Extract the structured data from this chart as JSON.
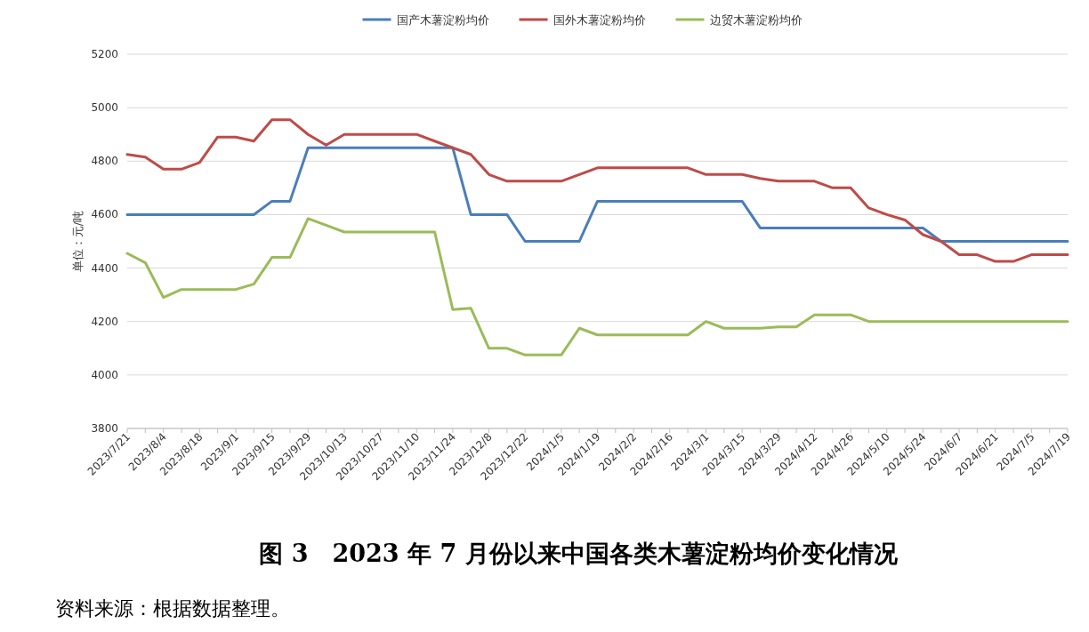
{
  "chart_data": {
    "type": "line",
    "title": "图 3　2023 年 7 月份以来中国各类木薯淀粉均价变化情况",
    "ylabel": "单位：元/吨",
    "categories": [
      "2023/7/21",
      null,
      "2023/8/4",
      null,
      "2023/8/18",
      null,
      "2023/9/1",
      null,
      "2023/9/15",
      null,
      "2023/9/29",
      null,
      "2023/10/13",
      null,
      "2023/10/27",
      null,
      "2023/11/10",
      null,
      "2023/11/24",
      null,
      "2023/12/8",
      null,
      "2023/12/22",
      null,
      "2024/1/5",
      null,
      "2024/1/19",
      null,
      "2024/2/2",
      null,
      "2024/2/16",
      null,
      "2024/3/1",
      null,
      "2024/3/15",
      null,
      "2024/3/29",
      null,
      "2024/4/12",
      null,
      "2024/4/26",
      null,
      "2024/5/10",
      null,
      "2024/5/24",
      null,
      "2024/6/7",
      null,
      "2024/6/21",
      null,
      "2024/7/5",
      null,
      "2024/7/19"
    ],
    "series": [
      {
        "name": "国产木薯淀粉均价",
        "color": "#4a7ebb",
        "values": [
          4600,
          4600,
          4600,
          4600,
          4600,
          4600,
          4600,
          4600,
          4650,
          4650,
          4850,
          4850,
          4850,
          4850,
          4850,
          4850,
          4850,
          4850,
          4850,
          4600,
          4600,
          4600,
          4500,
          4500,
          4500,
          4500,
          4650,
          4650,
          4650,
          4650,
          4650,
          4650,
          4650,
          4650,
          4650,
          4550,
          4550,
          4550,
          4550,
          4550,
          4550,
          4550,
          4550,
          4550,
          4550,
          4500,
          4500,
          4500,
          4500,
          4500,
          4500,
          4500,
          4500
        ]
      },
      {
        "name": "国外木薯淀粉均价",
        "color": "#be4b48",
        "values": [
          4825,
          4815,
          4770,
          4770,
          4795,
          4890,
          4890,
          4875,
          4955,
          4955,
          4900,
          4860,
          4900,
          4900,
          4900,
          4900,
          4900,
          4875,
          4850,
          4825,
          4750,
          4725,
          4725,
          4725,
          4725,
          4750,
          4775,
          4775,
          4775,
          4775,
          4775,
          4775,
          4750,
          4750,
          4750,
          4735,
          4725,
          4725,
          4725,
          4700,
          4700,
          4625,
          4600,
          4580,
          4525,
          4500,
          4450,
          4450,
          4425,
          4425,
          4450,
          4450,
          4450
        ]
      },
      {
        "name": "边贸木薯淀粉均价",
        "color": "#9bbb59",
        "values": [
          4455,
          4420,
          4290,
          4320,
          4320,
          4320,
          4320,
          4340,
          4440,
          4440,
          4585,
          4560,
          4535,
          4535,
          4535,
          4535,
          4535,
          4535,
          4245,
          4250,
          4100,
          4100,
          4075,
          4075,
          4075,
          4175,
          4150,
          4150,
          4150,
          4150,
          4150,
          4150,
          4200,
          4175,
          4175,
          4175,
          4180,
          4180,
          4225,
          4225,
          4225,
          4200,
          4200,
          4200,
          4200,
          4200,
          4200,
          4200,
          4200,
          4200,
          4200,
          4200,
          4200
        ]
      }
    ],
    "ylim": [
      3800,
      5200
    ],
    "yticks": [
      3800,
      4000,
      4200,
      4400,
      4600,
      4800,
      5000,
      5200
    ],
    "grid": "y",
    "legend": "top",
    "annotations": [
      "资料来源：根据数据整理。"
    ]
  }
}
